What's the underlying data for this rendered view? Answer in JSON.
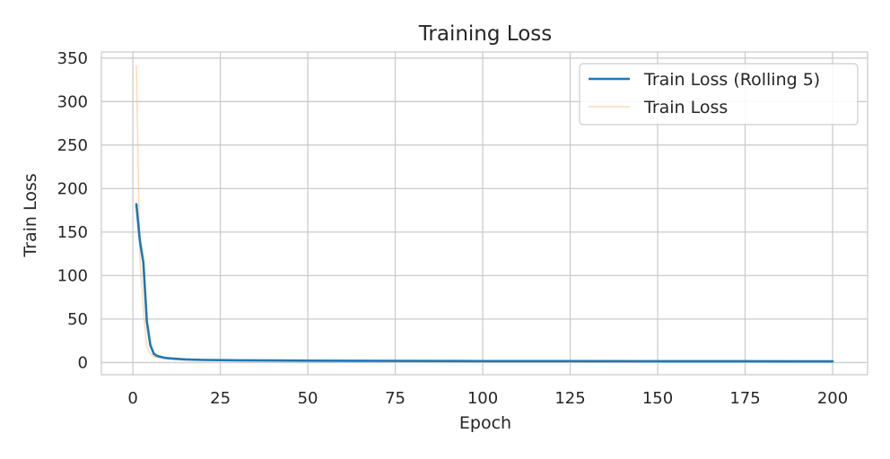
{
  "chart_data": {
    "type": "line",
    "title": "Training Loss",
    "xlabel": "Epoch",
    "ylabel": "Train Loss",
    "xlim": [
      -9,
      210
    ],
    "ylim": [
      -14,
      357
    ],
    "xticks": [
      0,
      25,
      50,
      75,
      100,
      125,
      150,
      175,
      200
    ],
    "yticks": [
      0,
      50,
      100,
      150,
      200,
      250,
      300,
      350
    ],
    "grid": true,
    "legend_position": "top-right",
    "series": [
      {
        "name": "Train Loss (Rolling 5)",
        "color": "#1f77b4",
        "x": [
          1,
          2,
          3,
          4,
          5,
          6,
          7,
          8,
          9,
          10,
          12,
          15,
          20,
          25,
          30,
          40,
          50,
          60,
          75,
          100,
          125,
          150,
          175,
          200
        ],
        "y": [
          182,
          140,
          115,
          47,
          20,
          10,
          7.5,
          6.5,
          5.5,
          5.0,
          4.4,
          3.6,
          3.0,
          2.8,
          2.6,
          2.4,
          2.2,
          2.0,
          1.9,
          1.7,
          1.6,
          1.5,
          1.5,
          1.4
        ]
      },
      {
        "name": "Train Loss",
        "color": "#ffbb78",
        "x": [
          1,
          2,
          3,
          4,
          5,
          6,
          7,
          8,
          9,
          10,
          12,
          15,
          20,
          25,
          30,
          40,
          50,
          60,
          75,
          100,
          125,
          150,
          175,
          200
        ],
        "y": [
          341,
          120,
          60,
          18,
          10,
          7,
          6,
          5.5,
          5.0,
          4.6,
          4.0,
          3.3,
          2.8,
          2.6,
          2.5,
          2.3,
          2.1,
          2.0,
          1.8,
          1.7,
          1.6,
          1.5,
          1.4,
          1.4
        ]
      }
    ]
  }
}
